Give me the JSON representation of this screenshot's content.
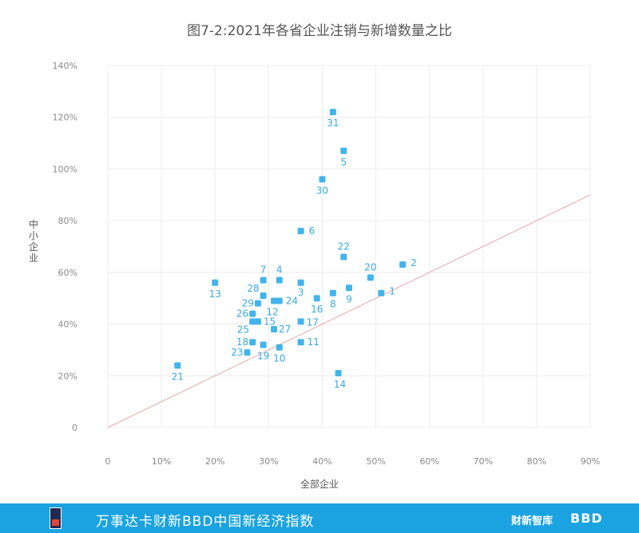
{
  "chart_data": {
    "type": "scatter",
    "title": "图7-2:2021年各省企业注销与新增数量之比",
    "xlabel": "全部企业",
    "ylabel": "中小企业",
    "xlim": [
      0,
      90
    ],
    "ylim": [
      0,
      140
    ],
    "x_ticks": [
      "0",
      "10%",
      "20%",
      "30%",
      "40%",
      "50%",
      "60%",
      "70%",
      "80%",
      "90%"
    ],
    "y_ticks": [
      "0",
      "20%",
      "40%",
      "60%",
      "80%",
      "100%",
      "120%",
      "140%"
    ],
    "grid": true,
    "reference_line": {
      "from": [
        0,
        0
      ],
      "to": [
        90,
        90
      ],
      "color": "#e3a9a9"
    },
    "point_color": "#43b4ea",
    "points": [
      {
        "label": "1",
        "x": 51,
        "y": 52
      },
      {
        "label": "2",
        "x": 55,
        "y": 63
      },
      {
        "label": "3",
        "x": 36,
        "y": 56
      },
      {
        "label": "4",
        "x": 32,
        "y": 57
      },
      {
        "label": "5",
        "x": 44,
        "y": 107
      },
      {
        "label": "7",
        "x": 29,
        "y": 57
      },
      {
        "label": "8",
        "x": 42,
        "y": 52
      },
      {
        "label": "9",
        "x": 45,
        "y": 54
      },
      {
        "label": "10",
        "x": 32,
        "y": 31
      },
      {
        "label": "11",
        "x": 36,
        "y": 33
      },
      {
        "label": "12",
        "x": 31,
        "y": 49
      },
      {
        "label": "13",
        "x": 20,
        "y": 56
      },
      {
        "label": "14",
        "x": 43,
        "y": 21
      },
      {
        "label": "15",
        "x": 28,
        "y": 41
      },
      {
        "label": "16",
        "x": 39,
        "y": 50
      },
      {
        "label": "17",
        "x": 36,
        "y": 41
      },
      {
        "label": "18",
        "x": 27,
        "y": 33
      },
      {
        "label": "19",
        "x": 29,
        "y": 32
      },
      {
        "label": "20",
        "x": 49,
        "y": 58
      },
      {
        "label": "21",
        "x": 13,
        "y": 24
      },
      {
        "label": "22",
        "x": 44,
        "y": 66
      },
      {
        "label": "23",
        "x": 26,
        "y": 29
      },
      {
        "label": "24",
        "x": 32,
        "y": 49
      },
      {
        "label": "25",
        "x": 27,
        "y": 41
      },
      {
        "label": "26",
        "x": 27,
        "y": 44
      },
      {
        "label": "27",
        "x": 31,
        "y": 38
      },
      {
        "label": "28",
        "x": 29,
        "y": 51
      },
      {
        "label": "29",
        "x": 28,
        "y": 48
      },
      {
        "label": "30",
        "x": 40,
        "y": 96
      },
      {
        "label": "31",
        "x": 42,
        "y": 122
      },
      {
        "label": "6",
        "x": 36,
        "y": 76
      }
    ]
  },
  "footer": {
    "index_name": "万事达卡财新BBD中国新经济指数",
    "brand_caixin": "财新智库",
    "brand_bbd": "BBD"
  }
}
